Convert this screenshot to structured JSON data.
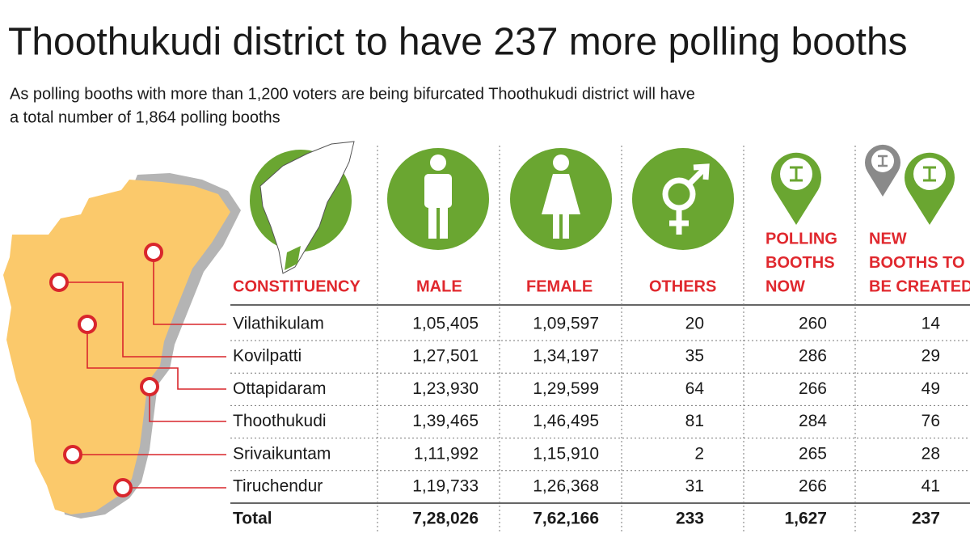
{
  "header": {
    "title": "Thoothukudi district to have 237 more polling booths",
    "subtitle_lines": [
      "As polling booths with more than 1,200 voters are being bifurcated Thoothukudi district will have",
      "a total number of 1,864 polling booths"
    ]
  },
  "table": {
    "headers": [
      [
        "CONSTITUENCY"
      ],
      [
        "MALE"
      ],
      [
        "FEMALE"
      ],
      [
        "OTHERS"
      ],
      [
        "POLLING",
        "BOOTHS",
        "NOW"
      ],
      [
        "NEW",
        "BOOTHS TO",
        "BE CREATED"
      ]
    ],
    "rows": [
      [
        "Vilathikulam",
        "1,05,405",
        "1,09,597",
        "20",
        "260",
        "14"
      ],
      [
        "Kovilpatti",
        "1,27,501",
        "1,34,197",
        "35",
        "286",
        "29"
      ],
      [
        "Ottapidaram",
        "1,23,930",
        "1,29,599",
        "64",
        "266",
        "49"
      ],
      [
        "Thoothukudi",
        "1,39,465",
        "1,46,495",
        "81",
        "284",
        "76"
      ],
      [
        "Srivaikuntam",
        "1,11,992",
        "1,15,910",
        "2",
        "265",
        "28"
      ],
      [
        "Tiruchendur",
        "1,19,733",
        "1,26,368",
        "31",
        "266",
        "41"
      ]
    ],
    "total": [
      "Total",
      "7,28,026",
      "7,62,166",
      "233",
      "1,627",
      "237"
    ]
  }
}
